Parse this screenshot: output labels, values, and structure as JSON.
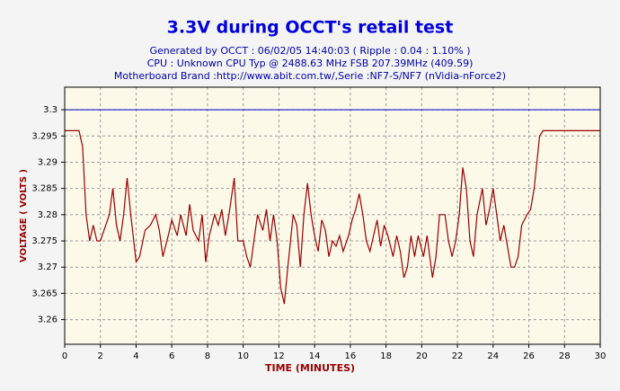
{
  "chart_data": {
    "type": "line",
    "title": "3.3V during OCCT's retail test",
    "subtitle_lines": [
      "Generated by OCCT : 06/02/05 14:40:03 ( Ripple : 0.04 : 1.10% )",
      "CPU : Unknown CPU Typ @ 2488.63 MHz FSB 207.39MHz (409.59)",
      "Motherboard Brand :http://www.abit.com.tw/,Serie :NF7-S/NF7 (nVidia-nForce2)"
    ],
    "x_label": "TIME (MINUTES)",
    "y_label": "VOLTAGE ( VOLTS )",
    "x": [
      0,
      0.8,
      1.0,
      1.2,
      1.4,
      1.6,
      1.8,
      2.0,
      2.2,
      2.5,
      2.7,
      2.9,
      3.1,
      3.3,
      3.5,
      3.7,
      4.0,
      4.2,
      4.5,
      4.8,
      5.1,
      5.3,
      5.5,
      5.8,
      6.0,
      6.3,
      6.5,
      6.8,
      7.0,
      7.2,
      7.5,
      7.7,
      7.9,
      8.1,
      8.4,
      8.6,
      8.8,
      9.0,
      9.2,
      9.5,
      9.7,
      10.0,
      10.2,
      10.4,
      10.6,
      10.8,
      11.1,
      11.3,
      11.5,
      11.7,
      11.9,
      12.1,
      12.3,
      12.5,
      12.8,
      13.0,
      13.2,
      13.4,
      13.6,
      13.8,
      14.0,
      14.2,
      14.4,
      14.6,
      14.8,
      15.0,
      15.2,
      15.4,
      15.6,
      15.9,
      16.1,
      16.3,
      16.5,
      16.7,
      16.9,
      17.1,
      17.3,
      17.5,
      17.7,
      17.9,
      18.1,
      18.4,
      18.6,
      18.8,
      19.0,
      19.2,
      19.4,
      19.6,
      19.8,
      20.1,
      20.3,
      20.6,
      20.8,
      21.0,
      21.3,
      21.5,
      21.7,
      21.9,
      22.1,
      22.3,
      22.5,
      22.7,
      22.9,
      23.1,
      23.4,
      23.6,
      23.8,
      24.0,
      24.2,
      24.4,
      24.6,
      24.8,
      25.0,
      25.2,
      25.4,
      25.6,
      25.9,
      26.1,
      26.3,
      26.6,
      26.8,
      30
    ],
    "series": [
      {
        "name": "3.3V",
        "color": "#990000",
        "values": [
          3.296,
          3.296,
          3.293,
          3.28,
          3.275,
          3.278,
          3.275,
          3.275,
          3.277,
          3.28,
          3.285,
          3.278,
          3.275,
          3.28,
          3.287,
          3.28,
          3.271,
          3.272,
          3.277,
          3.278,
          3.28,
          3.277,
          3.272,
          3.276,
          3.279,
          3.276,
          3.28,
          3.276,
          3.282,
          3.277,
          3.275,
          3.28,
          3.271,
          3.276,
          3.28,
          3.278,
          3.281,
          3.276,
          3.28,
          3.287,
          3.275,
          3.275,
          3.272,
          3.27,
          3.275,
          3.28,
          3.277,
          3.281,
          3.275,
          3.28,
          3.275,
          3.266,
          3.263,
          3.27,
          3.28,
          3.278,
          3.27,
          3.28,
          3.286,
          3.28,
          3.276,
          3.273,
          3.279,
          3.277,
          3.272,
          3.275,
          3.274,
          3.276,
          3.273,
          3.276,
          3.279,
          3.281,
          3.284,
          3.28,
          3.275,
          3.273,
          3.276,
          3.279,
          3.274,
          3.278,
          3.276,
          3.272,
          3.276,
          3.273,
          3.268,
          3.27,
          3.276,
          3.272,
          3.276,
          3.272,
          3.276,
          3.268,
          3.272,
          3.28,
          3.28,
          3.275,
          3.272,
          3.275,
          3.28,
          3.289,
          3.285,
          3.275,
          3.272,
          3.28,
          3.285,
          3.278,
          3.281,
          3.285,
          3.28,
          3.275,
          3.278,
          3.274,
          3.27,
          3.27,
          3.272,
          3.278,
          3.28,
          3.281,
          3.285,
          3.295,
          3.296,
          3.296
        ]
      }
    ],
    "reference_line": {
      "value": 3.3,
      "color": "#0000cc"
    },
    "xlim": [
      0,
      30
    ],
    "xticks": [
      0,
      2,
      4,
      6,
      8,
      10,
      12,
      14,
      16,
      18,
      20,
      22,
      24,
      26,
      28,
      30
    ],
    "ylim": [
      3.2553,
      3.3043
    ],
    "yticks": [
      3.26,
      3.265,
      3.27,
      3.275,
      3.28,
      3.285,
      3.29,
      3.295,
      3.3
    ],
    "grid": true
  }
}
